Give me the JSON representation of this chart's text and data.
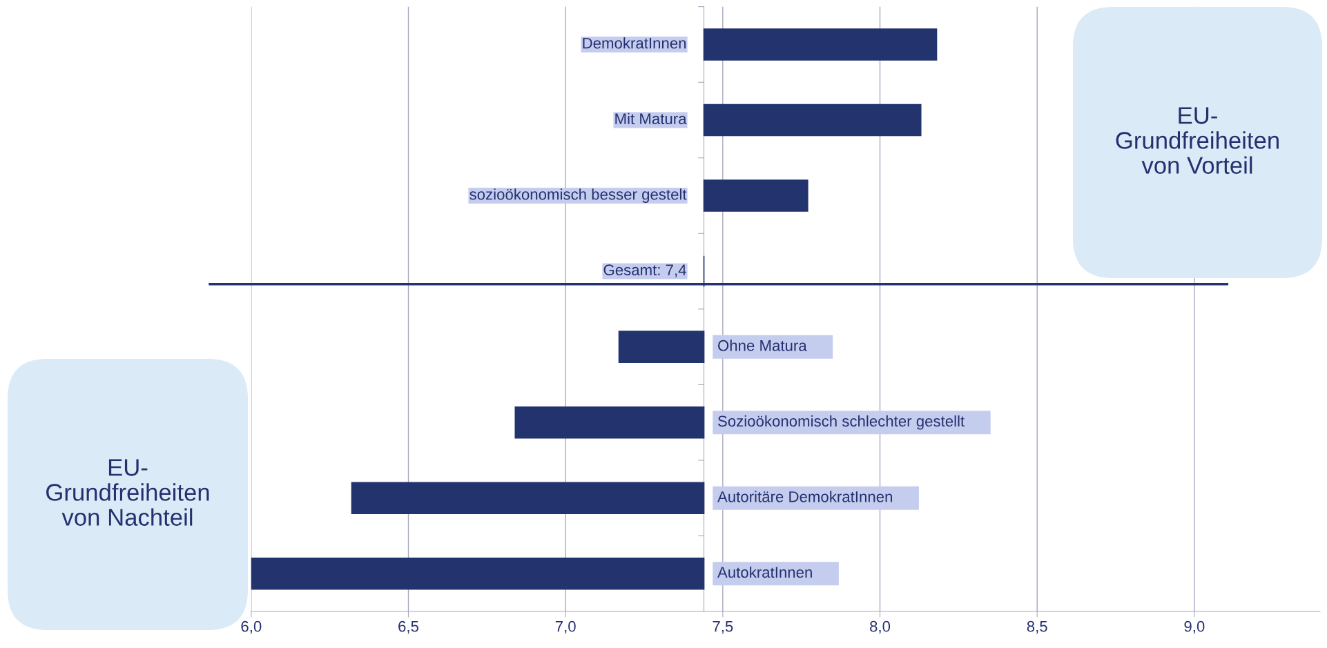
{
  "chart_data": {
    "type": "bar",
    "orientation": "horizontal",
    "categories": [
      "DemokratInnen",
      "Mit Matura",
      "sozioökonomisch besser gestelt",
      "Gesamt: 7,4",
      "Ohne Matura",
      "Sozioökonomisch schlechter gestellt",
      "Autoritäre DemokratInnen",
      "AutokratInnen"
    ],
    "base": [
      7.44,
      7.44,
      7.44,
      7.44,
      7.44,
      7.44,
      7.44,
      7.44
    ],
    "values": [
      0.74,
      0.69,
      0.33,
      0,
      -0.27,
      -0.6,
      -1.12,
      -1.44
    ],
    "color": "#22336e",
    "xlim": [
      6.0,
      9.4
    ],
    "xticks": [
      {
        "value": 6.0,
        "label": "6,0"
      },
      {
        "value": 6.5,
        "label": "6,5"
      },
      {
        "value": 7.0,
        "label": "7,0"
      },
      {
        "value": 7.5,
        "label": "7,5"
      },
      {
        "value": 8.0,
        "label": "8,0"
      },
      {
        "value": 8.5,
        "label": "8,5"
      },
      {
        "value": 9.0,
        "label": "9,0"
      }
    ],
    "grid": "x",
    "ref_lines": [
      {
        "axis": "y",
        "value": "Gesamt: 7,4",
        "color": "#22336e"
      }
    ],
    "annotations": [
      "EU-\nGrundfreiheiten\nvon Vorteil",
      "EU-\nGrundfreiheiten\nvon Nachteil"
    ]
  }
}
